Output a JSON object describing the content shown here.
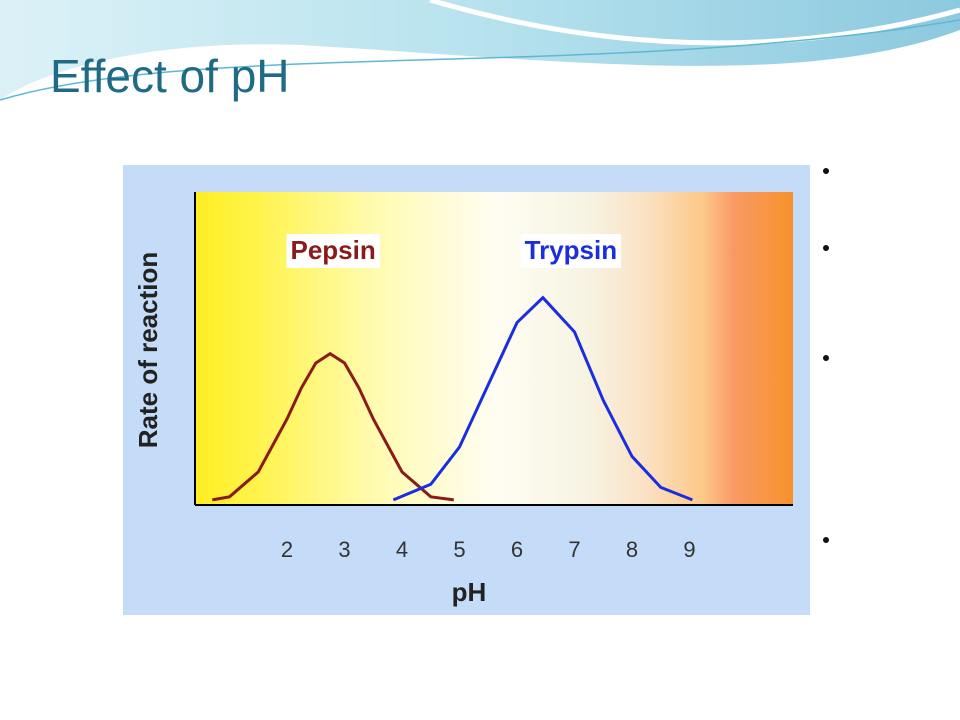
{
  "chart_data": {
    "type": "line",
    "title": "Effect of pH",
    "xlabel": "pH",
    "ylabel": "Rate of reaction",
    "xlim": [
      0.4,
      10.8
    ],
    "ylim": [
      0,
      1
    ],
    "xticks": [
      2,
      3,
      4,
      5,
      6,
      7,
      8,
      9
    ],
    "series": [
      {
        "name": "Pepsin",
        "color": "#8b1a1a",
        "x": [
          0.7,
          1.0,
          1.5,
          2.0,
          2.25,
          2.5,
          2.75,
          3.0,
          3.25,
          3.5,
          4.0,
          4.5,
          4.9
        ],
        "values": [
          0.01,
          0.02,
          0.1,
          0.27,
          0.37,
          0.45,
          0.48,
          0.45,
          0.37,
          0.27,
          0.1,
          0.02,
          0.01
        ]
      },
      {
        "name": "Trypsin",
        "color": "#1a2ee0",
        "x": [
          3.85,
          4.5,
          5.0,
          5.5,
          6.0,
          6.45,
          7.0,
          7.5,
          8.0,
          8.5,
          9.05
        ],
        "values": [
          0.01,
          0.06,
          0.18,
          0.38,
          0.58,
          0.66,
          0.55,
          0.33,
          0.15,
          0.05,
          0.01
        ]
      }
    ]
  }
}
